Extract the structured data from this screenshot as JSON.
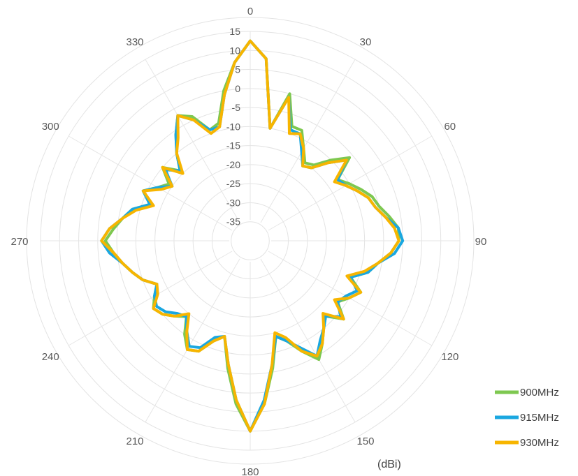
{
  "chart_data": {
    "type": "polar",
    "unit_label": "(dBi)",
    "radial_range": [
      -40,
      15
    ],
    "radial_ticks": [
      "15",
      "10",
      "5",
      "0",
      "-5",
      "-10",
      "-15",
      "-20",
      "-25",
      "-30",
      "-35"
    ],
    "radial_tick_values": [
      15,
      10,
      5,
      0,
      -5,
      -10,
      -15,
      -20,
      -25,
      -30,
      -35
    ],
    "angle_ticks": [
      "0",
      "30",
      "60",
      "90",
      "120",
      "150",
      "180",
      "210",
      "240",
      "270",
      "300",
      "330"
    ],
    "angle_tick_values": [
      0,
      30,
      60,
      90,
      120,
      150,
      180,
      210,
      240,
      270,
      300,
      330
    ],
    "grid": true,
    "legend_position": "bottom-right",
    "angles": [
      0,
      5,
      10,
      15,
      20,
      25,
      30,
      35,
      40,
      45,
      50,
      55,
      60,
      65,
      70,
      75,
      80,
      85,
      90,
      95,
      100,
      105,
      110,
      115,
      120,
      125,
      130,
      135,
      140,
      145,
      150,
      155,
      160,
      165,
      170,
      175,
      180,
      185,
      190,
      195,
      200,
      205,
      210,
      215,
      220,
      225,
      230,
      235,
      240,
      245,
      250,
      255,
      260,
      265,
      270,
      275,
      280,
      285,
      290,
      295,
      300,
      305,
      310,
      315,
      320,
      325,
      330,
      335,
      340,
      345,
      350,
      355
    ],
    "series": [
      {
        "name": "900MHz",
        "color": "#7ec850",
        "values": [
          12.5,
          8,
          -10,
          0,
          -8,
          -8,
          -12,
          -15,
          -14,
          -10,
          -6,
          -12,
          -10,
          -8,
          -6,
          -5,
          -3,
          -1,
          -1,
          -3,
          -6,
          -8,
          -12,
          -8,
          -10,
          -12,
          -8,
          -12,
          -10,
          -7,
          -4,
          -8,
          -12,
          -14,
          -6,
          3,
          10,
          3,
          -6,
          -14,
          -12,
          -8,
          -7,
          -10,
          -14,
          -12,
          -10,
          -9,
          -11,
          -13,
          -10,
          -8,
          -6,
          -4,
          -2,
          -4,
          -6,
          -8,
          -12,
          -9,
          -12,
          -14,
          -10,
          -14,
          -10,
          -6,
          -2,
          -4,
          -9,
          -8,
          0,
          7
        ]
      },
      {
        "name": "915MHz",
        "color": "#1aa7e0",
        "values": [
          12.5,
          8,
          -10,
          -1,
          -9,
          -9,
          -13,
          -16,
          -15,
          -11,
          -7,
          -12,
          -11,
          -9,
          -7,
          -6,
          -4,
          -1,
          0,
          -2,
          -6,
          -8,
          -12,
          -9,
          -11,
          -12,
          -9,
          -12,
          -10,
          -8,
          -5,
          -9,
          -12,
          -14,
          -7,
          2,
          10,
          2,
          -7,
          -14,
          -13,
          -9,
          -8,
          -11,
          -14,
          -13,
          -11,
          -10,
          -11,
          -13,
          -10,
          -8,
          -6,
          -3,
          -1,
          -3,
          -6,
          -8,
          -12,
          -9,
          -12,
          -15,
          -11,
          -14,
          -10,
          -6,
          -2,
          -5,
          -9,
          -9,
          -1,
          7
        ]
      },
      {
        "name": "930MHz",
        "color": "#f7b500",
        "values": [
          12.5,
          8,
          -10,
          -1,
          -10,
          -9,
          -12,
          -16,
          -15,
          -11,
          -7,
          -13,
          -11,
          -9,
          -7,
          -6,
          -4,
          -2,
          -1,
          -3,
          -6,
          -9,
          -13,
          -8,
          -10,
          -13,
          -8,
          -13,
          -10,
          -7,
          -5,
          -8,
          -13,
          -15,
          -7,
          3,
          10,
          2,
          -7,
          -14,
          -12,
          -8,
          -7,
          -11,
          -15,
          -12,
          -10,
          -9,
          -12,
          -13,
          -10,
          -8,
          -6,
          -4,
          -1,
          -3,
          -6,
          -9,
          -13,
          -9,
          -13,
          -15,
          -10,
          -15,
          -10,
          -7,
          -2,
          -5,
          -10,
          -9,
          -1,
          7
        ]
      }
    ]
  }
}
